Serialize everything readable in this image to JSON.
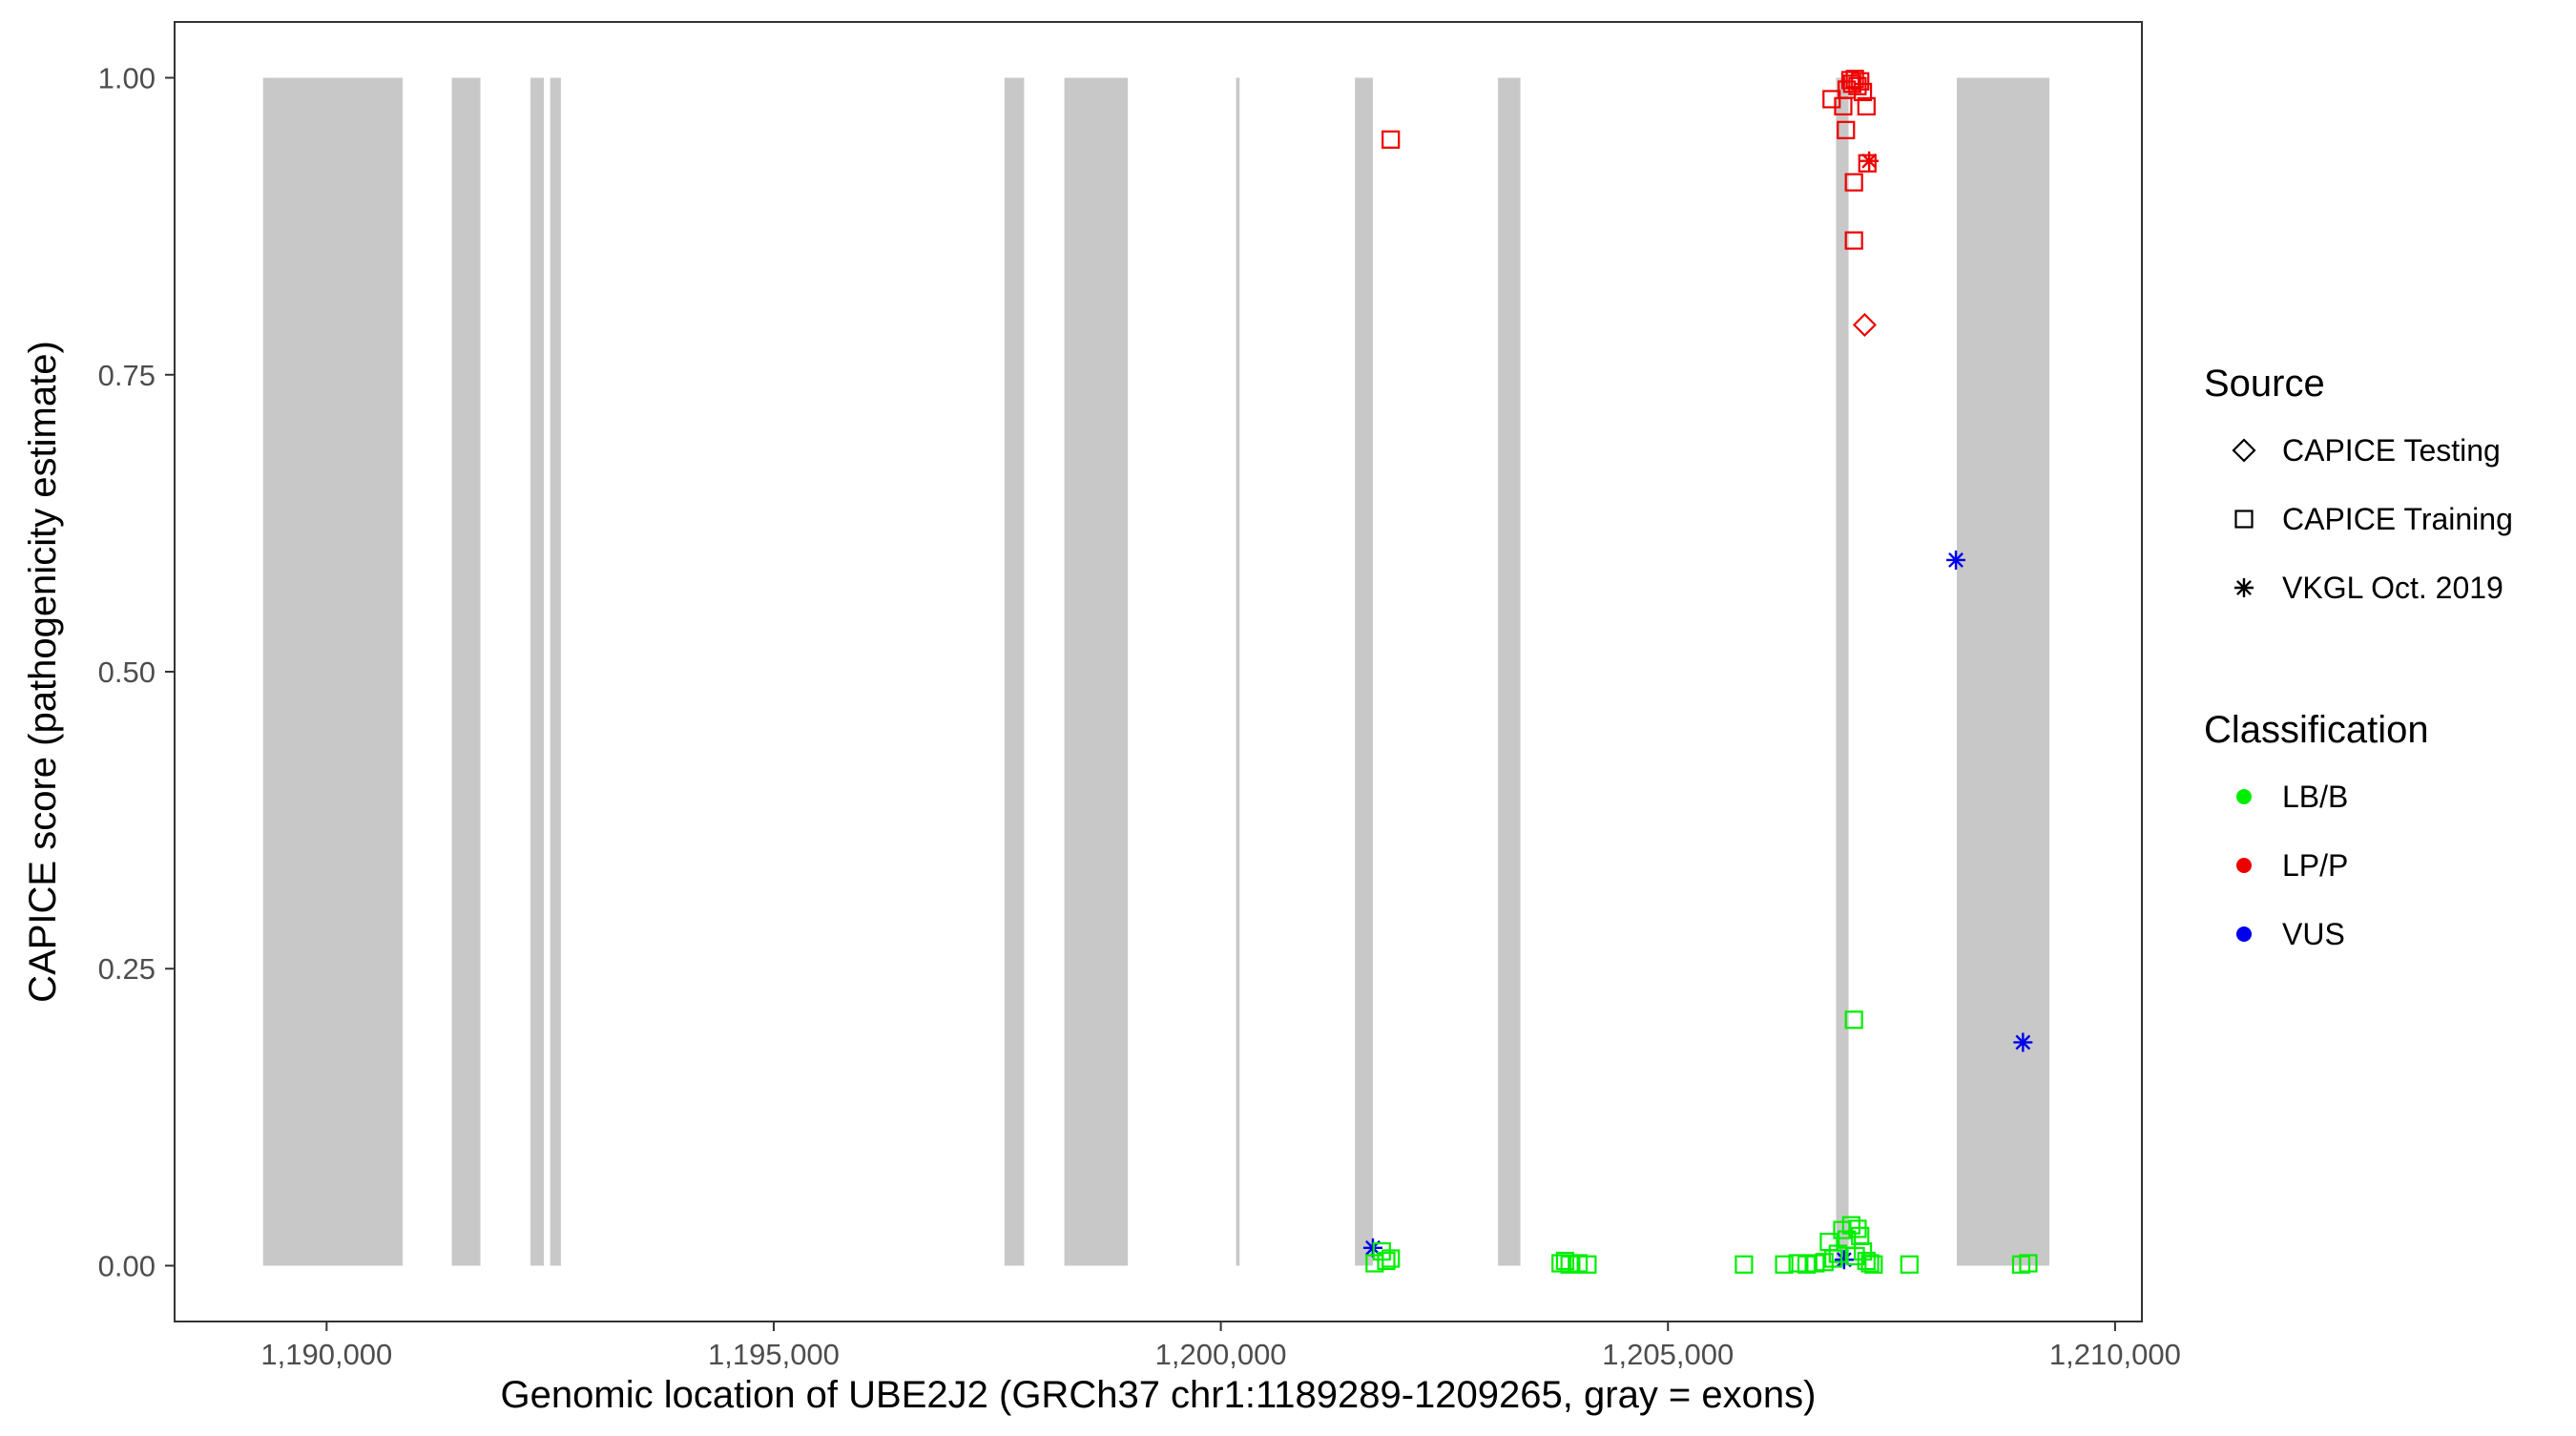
{
  "chart_data": {
    "type": "scatter",
    "title": "",
    "xlabel": "Genomic location of UBE2J2 (GRCh37 chr1:1189289-1209265, gray = exons)",
    "ylabel": "CAPICE score (pathogenicity estimate)",
    "xlim": [
      1188300,
      1210300
    ],
    "ylim": [
      -0.047,
      1.047
    ],
    "x_ticks": [
      1190000,
      1195000,
      1200000,
      1205000,
      1210000
    ],
    "x_tick_labels": [
      "1,190,000",
      "1,195,000",
      "1,200,000",
      "1,205,000",
      "1,210,000"
    ],
    "y_ticks": [
      0,
      0.25,
      0.5,
      0.75,
      1.0
    ],
    "y_tick_labels": [
      "0.00",
      "0.25",
      "0.50",
      "0.75",
      "1.00"
    ],
    "grid": false,
    "exons": [
      [
        1189289,
        1190850
      ],
      [
        1191400,
        1191720
      ],
      [
        1192280,
        1192430
      ],
      [
        1192500,
        1192620
      ],
      [
        1197580,
        1197800
      ],
      [
        1198250,
        1198960
      ],
      [
        1200170,
        1200210
      ],
      [
        1201500,
        1201700
      ],
      [
        1203100,
        1203350
      ],
      [
        1206880,
        1207020
      ],
      [
        1208230,
        1209265
      ]
    ],
    "legend": {
      "placement": "right",
      "source_title": "Source",
      "source_items": [
        {
          "label": "CAPICE Testing",
          "shape": "diamond"
        },
        {
          "label": "CAPICE Training",
          "shape": "square"
        },
        {
          "label": "VKGL Oct. 2019",
          "shape": "asterisk"
        }
      ],
      "class_title": "Classification",
      "class_items": [
        {
          "label": "LB/B",
          "color": "#00ee00"
        },
        {
          "label": "LP/P",
          "color": "#ee0000"
        },
        {
          "label": "VUS",
          "color": "#0000ee"
        }
      ]
    },
    "colors": {
      "LB/B": "#00ee00",
      "LP/P": "#ee0000",
      "VUS": "#0000ee",
      "exon": "#c8c8c8"
    },
    "points": [
      {
        "x": 1201900,
        "y": 0.948,
        "source": "CAPICE Training",
        "class": "LP/P"
      },
      {
        "x": 1206830,
        "y": 0.982,
        "source": "CAPICE Training",
        "class": "LP/P"
      },
      {
        "x": 1206960,
        "y": 0.976,
        "source": "CAPICE Training",
        "class": "LP/P"
      },
      {
        "x": 1207000,
        "y": 0.99,
        "source": "CAPICE Training",
        "class": "LP/P"
      },
      {
        "x": 1207040,
        "y": 0.998,
        "source": "CAPICE Training",
        "class": "LP/P"
      },
      {
        "x": 1207060,
        "y": 0.995,
        "source": "CAPICE Training",
        "class": "LP/P"
      },
      {
        "x": 1207090,
        "y": 0.999,
        "source": "CAPICE Training",
        "class": "LP/P"
      },
      {
        "x": 1207120,
        "y": 0.993,
        "source": "CAPICE Training",
        "class": "LP/P"
      },
      {
        "x": 1207150,
        "y": 0.997,
        "source": "CAPICE Training",
        "class": "LP/P"
      },
      {
        "x": 1207180,
        "y": 0.988,
        "source": "CAPICE Training",
        "class": "LP/P"
      },
      {
        "x": 1207220,
        "y": 0.976,
        "source": "CAPICE Training",
        "class": "LP/P"
      },
      {
        "x": 1206990,
        "y": 0.956,
        "source": "CAPICE Training",
        "class": "LP/P"
      },
      {
        "x": 1207230,
        "y": 0.928,
        "source": "CAPICE Training",
        "class": "LP/P"
      },
      {
        "x": 1207080,
        "y": 0.912,
        "source": "CAPICE Training",
        "class": "LP/P"
      },
      {
        "x": 1207080,
        "y": 0.863,
        "source": "CAPICE Training",
        "class": "LP/P"
      },
      {
        "x": 1207200,
        "y": 0.792,
        "source": "CAPICE Testing",
        "class": "LP/P"
      },
      {
        "x": 1207250,
        "y": 0.93,
        "source": "VKGL Oct. 2019",
        "class": "LP/P"
      },
      {
        "x": 1208220,
        "y": 0.594,
        "source": "VKGL Oct. 2019",
        "class": "VUS"
      },
      {
        "x": 1208970,
        "y": 0.188,
        "source": "VKGL Oct. 2019",
        "class": "VUS"
      },
      {
        "x": 1201700,
        "y": 0.015,
        "source": "VKGL Oct. 2019",
        "class": "VUS"
      },
      {
        "x": 1206970,
        "y": 0.005,
        "source": "VKGL Oct. 2019",
        "class": "VUS"
      },
      {
        "x": 1207080,
        "y": 0.207,
        "source": "CAPICE Training",
        "class": "LB/B"
      },
      {
        "x": 1201720,
        "y": 0.002,
        "source": "CAPICE Training",
        "class": "LB/B"
      },
      {
        "x": 1201800,
        "y": 0.012,
        "source": "CAPICE Training",
        "class": "LB/B"
      },
      {
        "x": 1201850,
        "y": 0.004,
        "source": "CAPICE Training",
        "class": "LB/B"
      },
      {
        "x": 1201900,
        "y": 0.006,
        "source": "CAPICE Training",
        "class": "LB/B"
      },
      {
        "x": 1203800,
        "y": 0.002,
        "source": "CAPICE Training",
        "class": "LB/B"
      },
      {
        "x": 1203850,
        "y": 0.004,
        "source": "CAPICE Training",
        "class": "LB/B"
      },
      {
        "x": 1203900,
        "y": 0.001,
        "source": "CAPICE Training",
        "class": "LB/B"
      },
      {
        "x": 1204000,
        "y": 0.002,
        "source": "CAPICE Training",
        "class": "LB/B"
      },
      {
        "x": 1204100,
        "y": 0.001,
        "source": "CAPICE Training",
        "class": "LB/B"
      },
      {
        "x": 1205850,
        "y": 0.001,
        "source": "CAPICE Training",
        "class": "LB/B"
      },
      {
        "x": 1206300,
        "y": 0.001,
        "source": "CAPICE Training",
        "class": "LB/B"
      },
      {
        "x": 1206450,
        "y": 0.002,
        "source": "CAPICE Training",
        "class": "LB/B"
      },
      {
        "x": 1206550,
        "y": 0.001,
        "source": "CAPICE Training",
        "class": "LB/B"
      },
      {
        "x": 1206650,
        "y": 0.002,
        "source": "CAPICE Training",
        "class": "LB/B"
      },
      {
        "x": 1206750,
        "y": 0.003,
        "source": "CAPICE Training",
        "class": "LB/B"
      },
      {
        "x": 1206800,
        "y": 0.02,
        "source": "CAPICE Training",
        "class": "LB/B"
      },
      {
        "x": 1206850,
        "y": 0.006,
        "source": "CAPICE Training",
        "class": "LB/B"
      },
      {
        "x": 1206900,
        "y": 0.01,
        "source": "CAPICE Training",
        "class": "LB/B"
      },
      {
        "x": 1206950,
        "y": 0.03,
        "source": "CAPICE Training",
        "class": "LB/B"
      },
      {
        "x": 1207000,
        "y": 0.022,
        "source": "CAPICE Training",
        "class": "LB/B"
      },
      {
        "x": 1207050,
        "y": 0.034,
        "source": "CAPICE Training",
        "class": "LB/B"
      },
      {
        "x": 1207100,
        "y": 0.008,
        "source": "CAPICE Training",
        "class": "LB/B"
      },
      {
        "x": 1207120,
        "y": 0.031,
        "source": "CAPICE Training",
        "class": "LB/B"
      },
      {
        "x": 1207150,
        "y": 0.025,
        "source": "CAPICE Training",
        "class": "LB/B"
      },
      {
        "x": 1207180,
        "y": 0.012,
        "source": "CAPICE Training",
        "class": "LB/B"
      },
      {
        "x": 1207220,
        "y": 0.004,
        "source": "CAPICE Training",
        "class": "LB/B"
      },
      {
        "x": 1207260,
        "y": 0.002,
        "source": "CAPICE Training",
        "class": "LB/B"
      },
      {
        "x": 1207300,
        "y": 0.001,
        "source": "CAPICE Training",
        "class": "LB/B"
      },
      {
        "x": 1207700,
        "y": 0.001,
        "source": "CAPICE Training",
        "class": "LB/B"
      },
      {
        "x": 1208950,
        "y": 0.001,
        "source": "CAPICE Training",
        "class": "LB/B"
      },
      {
        "x": 1209030,
        "y": 0.002,
        "source": "CAPICE Training",
        "class": "LB/B"
      }
    ]
  }
}
